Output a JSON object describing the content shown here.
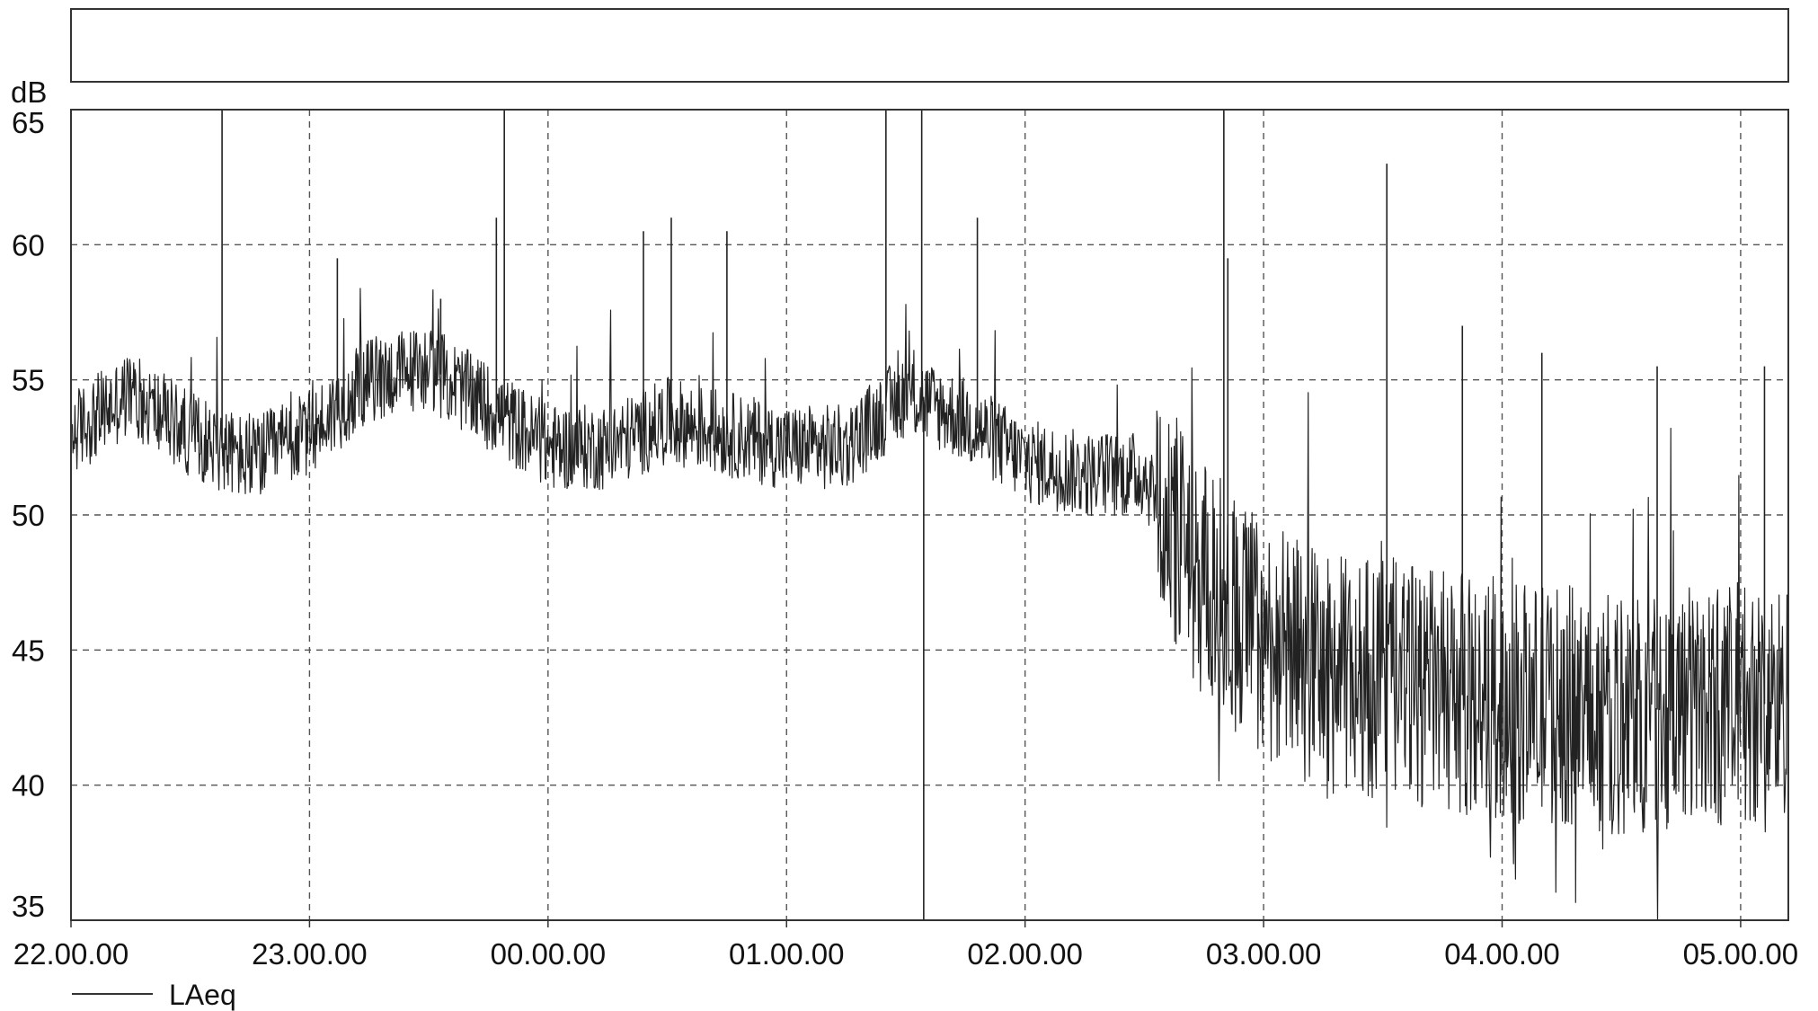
{
  "chart_data": {
    "type": "line",
    "xlabel": "",
    "ylabel": "dB",
    "ylim": [
      35,
      65
    ],
    "yticks": [
      35,
      40,
      45,
      50,
      55,
      60,
      65
    ],
    "xlim_hours": [
      22.0,
      29.2
    ],
    "xticks": [
      {
        "hour": 22,
        "label": "22.00.00"
      },
      {
        "hour": 23,
        "label": "23.00.00"
      },
      {
        "hour": 24,
        "label": "00.00.00"
      },
      {
        "hour": 25,
        "label": "01.00.00"
      },
      {
        "hour": 26,
        "label": "02.00.00"
      },
      {
        "hour": 27,
        "label": "03.00.00"
      },
      {
        "hour": 28,
        "label": "04.00.00"
      },
      {
        "hour": 29,
        "label": "05.00.00"
      }
    ],
    "grid": true,
    "legend_position": "bottom-left",
    "series": [
      {
        "name": "LAeq",
        "color": "#222222",
        "baseline": {
          "x": [
            "22.00.00",
            "22.15.00",
            "22.30.00",
            "22.45.00",
            "23.00.00",
            "23.15.00",
            "23.30.00",
            "23.45.00",
            "00.00.00",
            "00.15.00",
            "00.30.00",
            "00.45.00",
            "01.00.00",
            "01.15.00",
            "01.30.00",
            "01.45.00",
            "02.00.00",
            "02.15.00",
            "02.30.00",
            "02.35.00",
            "02.45.00",
            "03.00.00",
            "03.15.00",
            "03.30.00",
            "03.45.00",
            "04.00.00",
            "04.15.00",
            "04.30.00",
            "04.45.00",
            "05.00.00",
            "05.12.00"
          ],
          "y": [
            53,
            54.5,
            53,
            52,
            53,
            55,
            55.5,
            54,
            52.5,
            52.5,
            53.5,
            53,
            52.5,
            52.5,
            54.5,
            53.5,
            52,
            51.5,
            51.5,
            50,
            47.5,
            45.5,
            44,
            44,
            43.5,
            43,
            43,
            42.5,
            43,
            43,
            43
          ]
        },
        "spikes": [
          {
            "x": "22.38.00",
            "y": 65
          },
          {
            "x": "23.07.00",
            "y": 59.5
          },
          {
            "x": "23.33.00",
            "y": 58
          },
          {
            "x": "23.47.00",
            "y": 61
          },
          {
            "x": "23.49.00",
            "y": 65
          },
          {
            "x": "00.24.00",
            "y": 60.5
          },
          {
            "x": "00.31.00",
            "y": 61
          },
          {
            "x": "00.45.00",
            "y": 60.5
          },
          {
            "x": "01.25.00",
            "y": 65
          },
          {
            "x": "01.34.00",
            "y": 65
          },
          {
            "x": "01.34.30",
            "y": 35
          },
          {
            "x": "01.48.00",
            "y": 61
          },
          {
            "x": "02.50.00",
            "y": 65
          },
          {
            "x": "02.51.00",
            "y": 59.5
          },
          {
            "x": "03.31.00",
            "y": 63
          },
          {
            "x": "03.50.00",
            "y": 57
          },
          {
            "x": "04.10.00",
            "y": 56
          },
          {
            "x": "04.39.00",
            "y": 55.5
          },
          {
            "x": "05.06.00",
            "y": 55.5
          }
        ]
      }
    ]
  }
}
